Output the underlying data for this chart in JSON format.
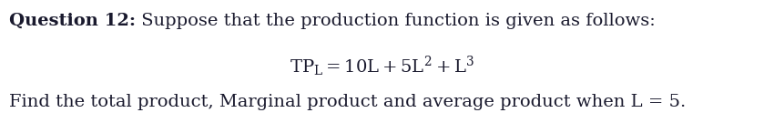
{
  "line1_bold": "Question 12:",
  "line1_regular": " Suppose that the production function is given as follows:",
  "line2_math": "$\\mathregular{TP_L = 10L + 5L^2 + L^3}$",
  "line3": "Find the total product, Marginal product and average product when L = 5.",
  "bg_color": "#ffffff",
  "text_color": "#1a1a2e",
  "font_size": 14,
  "math_font_size": 14,
  "fig_width": 8.39,
  "fig_height": 1.35,
  "dpi": 100
}
